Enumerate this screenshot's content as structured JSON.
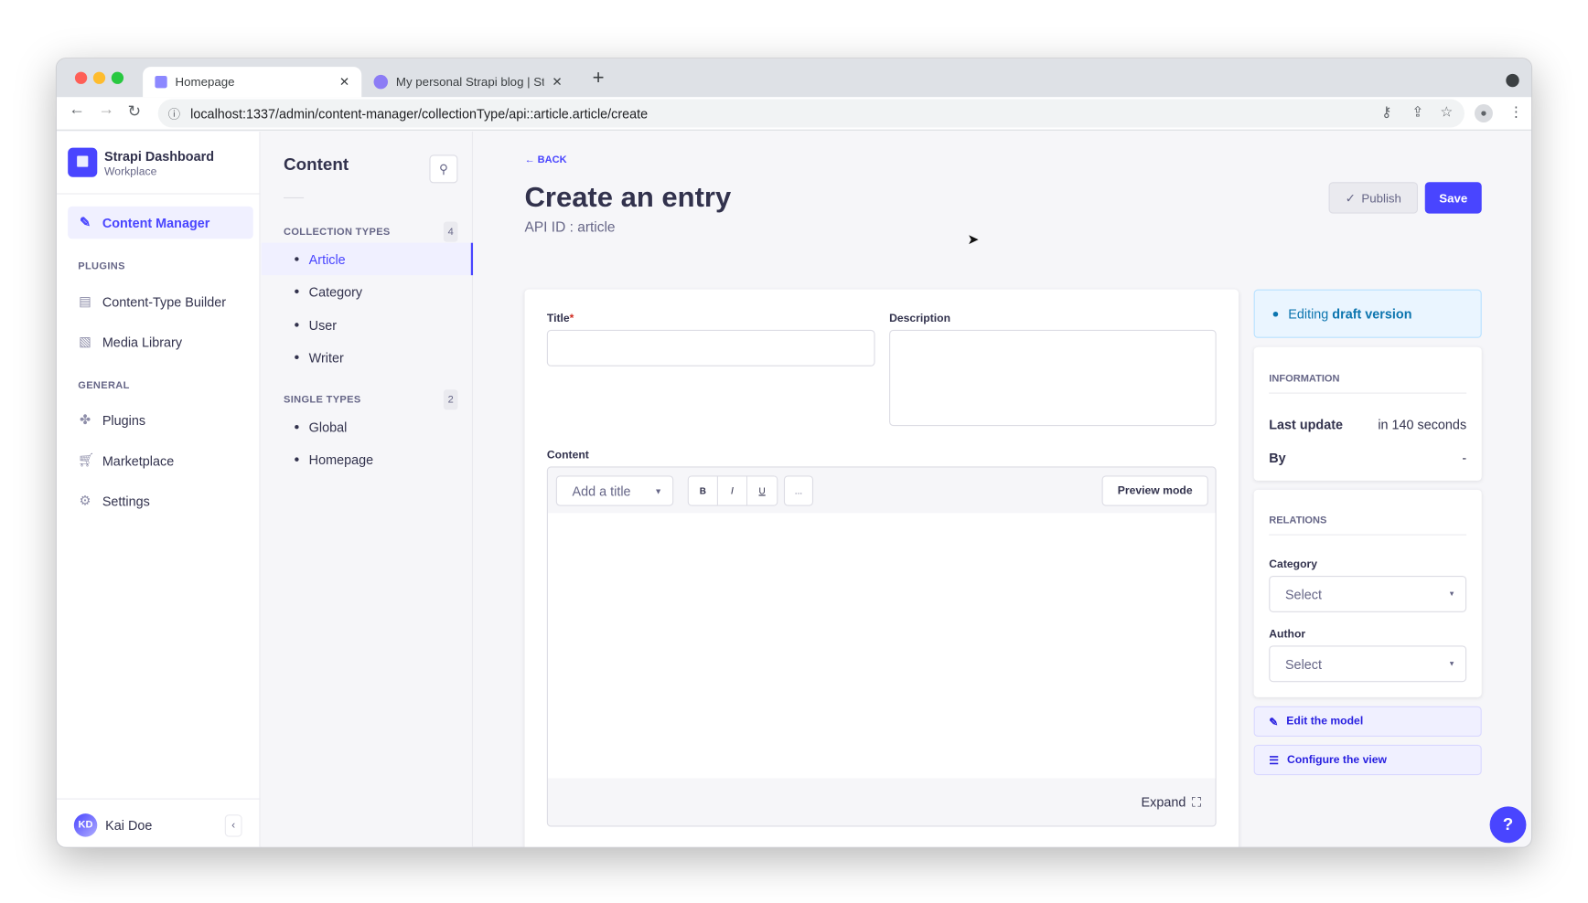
{
  "browser": {
    "tabs": [
      {
        "title": "Homepage",
        "active": true
      },
      {
        "title": "My personal Strapi blog | Strap",
        "active": false
      }
    ],
    "url": "localhost:1337/admin/content-manager/collectionType/api::article.article/create"
  },
  "nav": {
    "brand_title": "Strapi Dashboard",
    "brand_subtitle": "Workplace",
    "active_item": "Content Manager",
    "plugins_heading": "PLUGINS",
    "plugins": [
      "Content-Type Builder",
      "Media Library"
    ],
    "general_heading": "GENERAL",
    "general": [
      "Plugins",
      "Marketplace",
      "Settings"
    ],
    "user_initials": "KD",
    "user_name": "Kai Doe"
  },
  "content_nav": {
    "title": "Content",
    "collection_heading": "COLLECTION TYPES",
    "collection_count": "4",
    "collection_items": [
      "Article",
      "Category",
      "User",
      "Writer"
    ],
    "single_heading": "SINGLE TYPES",
    "single_count": "2",
    "single_items": [
      "Global",
      "Homepage"
    ]
  },
  "header": {
    "back": "BACK",
    "title": "Create an entry",
    "subtitle": "API ID : article",
    "publish": "Publish",
    "save": "Save"
  },
  "form": {
    "title_label": "Title",
    "required_mark": "*",
    "title_value": "",
    "description_label": "Description",
    "description_value": "",
    "content_label": "Content",
    "heading_select": "Add a title",
    "bold": "B",
    "italic": "I",
    "underline": "U",
    "more": "...",
    "preview": "Preview mode",
    "expand": "Expand"
  },
  "sidebar": {
    "status_prefix": "Editing ",
    "status_strong": "draft version",
    "info_heading": "INFORMATION",
    "last_update_label": "Last update",
    "last_update_value": "in 140 seconds",
    "by_label": "By",
    "by_value": "-",
    "relations_heading": "RELATIONS",
    "category_label": "Category",
    "category_placeholder": "Select",
    "author_label": "Author",
    "author_placeholder": "Select",
    "edit_model": "Edit the model",
    "configure_view": "Configure the view"
  },
  "help": "?",
  "colors": {
    "primary": "#4945ff",
    "primary_light": "#f0f0ff",
    "info_bg": "#eaf5ff"
  }
}
